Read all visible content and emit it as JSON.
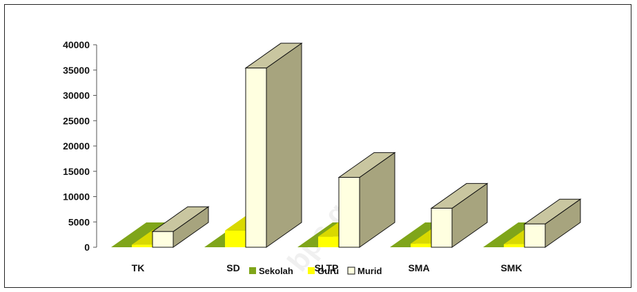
{
  "chart_data": {
    "type": "bar",
    "title": "",
    "xlabel": "",
    "ylabel": "",
    "categories": [
      "TK",
      "SD",
      "SLTP",
      "SMA",
      "SMK"
    ],
    "series": [
      {
        "name": "Sekolah",
        "values": [
          200,
          300,
          100,
          50,
          40
        ],
        "color": "#7fa51a"
      },
      {
        "name": "Guru",
        "values": [
          500,
          3300,
          2100,
          700,
          600
        ],
        "color": "#ffff00"
      },
      {
        "name": "Murid",
        "values": [
          3100,
          35400,
          13800,
          7700,
          4600
        ],
        "color": "#ffffe0"
      }
    ],
    "ylim": [
      0,
      40000
    ],
    "yticks": [
      0,
      5000,
      10000,
      15000,
      20000,
      25000,
      30000,
      35000,
      40000
    ],
    "grid": false,
    "legend": "bottom",
    "style": "3d-column",
    "watermark": "bps.go.id"
  },
  "colors": {
    "murid_side": "#a7a47e",
    "murid_top": "#c9c6a0",
    "axis": "#555555"
  }
}
